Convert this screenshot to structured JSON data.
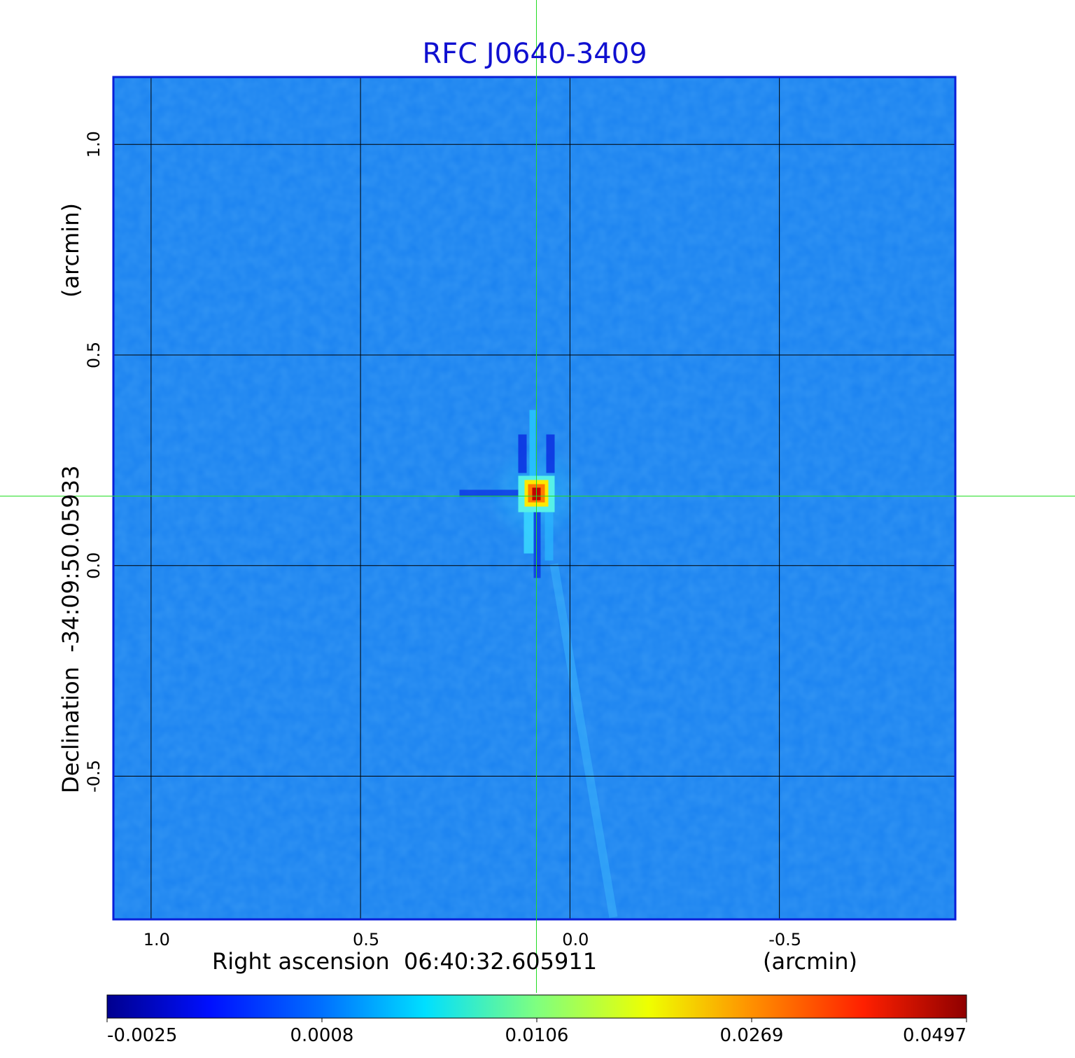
{
  "chart_data": {
    "type": "heatmap",
    "title": "RFC J0640-3409",
    "xlabel": "Right ascension  06:40:32.605911",
    "xunit": "(arcmin)",
    "ylabel": "Declination  -34:09:50.05933",
    "yunit": "(arcmin)",
    "x_ticks": [
      "1.0",
      "0.5",
      "0.0",
      "-0.5"
    ],
    "y_ticks": [
      "1.0",
      "0.5",
      "0.0",
      "-0.5"
    ],
    "x_tick_values": [
      1.0,
      0.5,
      0.0,
      -0.5
    ],
    "y_tick_values": [
      1.0,
      0.5,
      0.0,
      -0.5
    ],
    "xlim": [
      1.09,
      -0.92
    ],
    "ylim": [
      -0.84,
      1.16
    ],
    "grid": true,
    "crosshair": [
      0.08,
      0.165
    ],
    "peak_position": [
      0.08,
      0.17
    ],
    "colormap": "jet",
    "colorbar_ticks": [
      "-0.0025",
      "0.0008",
      "0.0106",
      "0.0269",
      "0.0497"
    ],
    "colorbar_values": [
      -0.0025,
      0.0008,
      0.0106,
      0.0269,
      0.0497
    ],
    "background_color": "#1a82f0",
    "title_color": "#1010d0",
    "frame_color": "#0a1ed8",
    "crosshair_color": "#22dd22",
    "grid_color": "#000000"
  }
}
